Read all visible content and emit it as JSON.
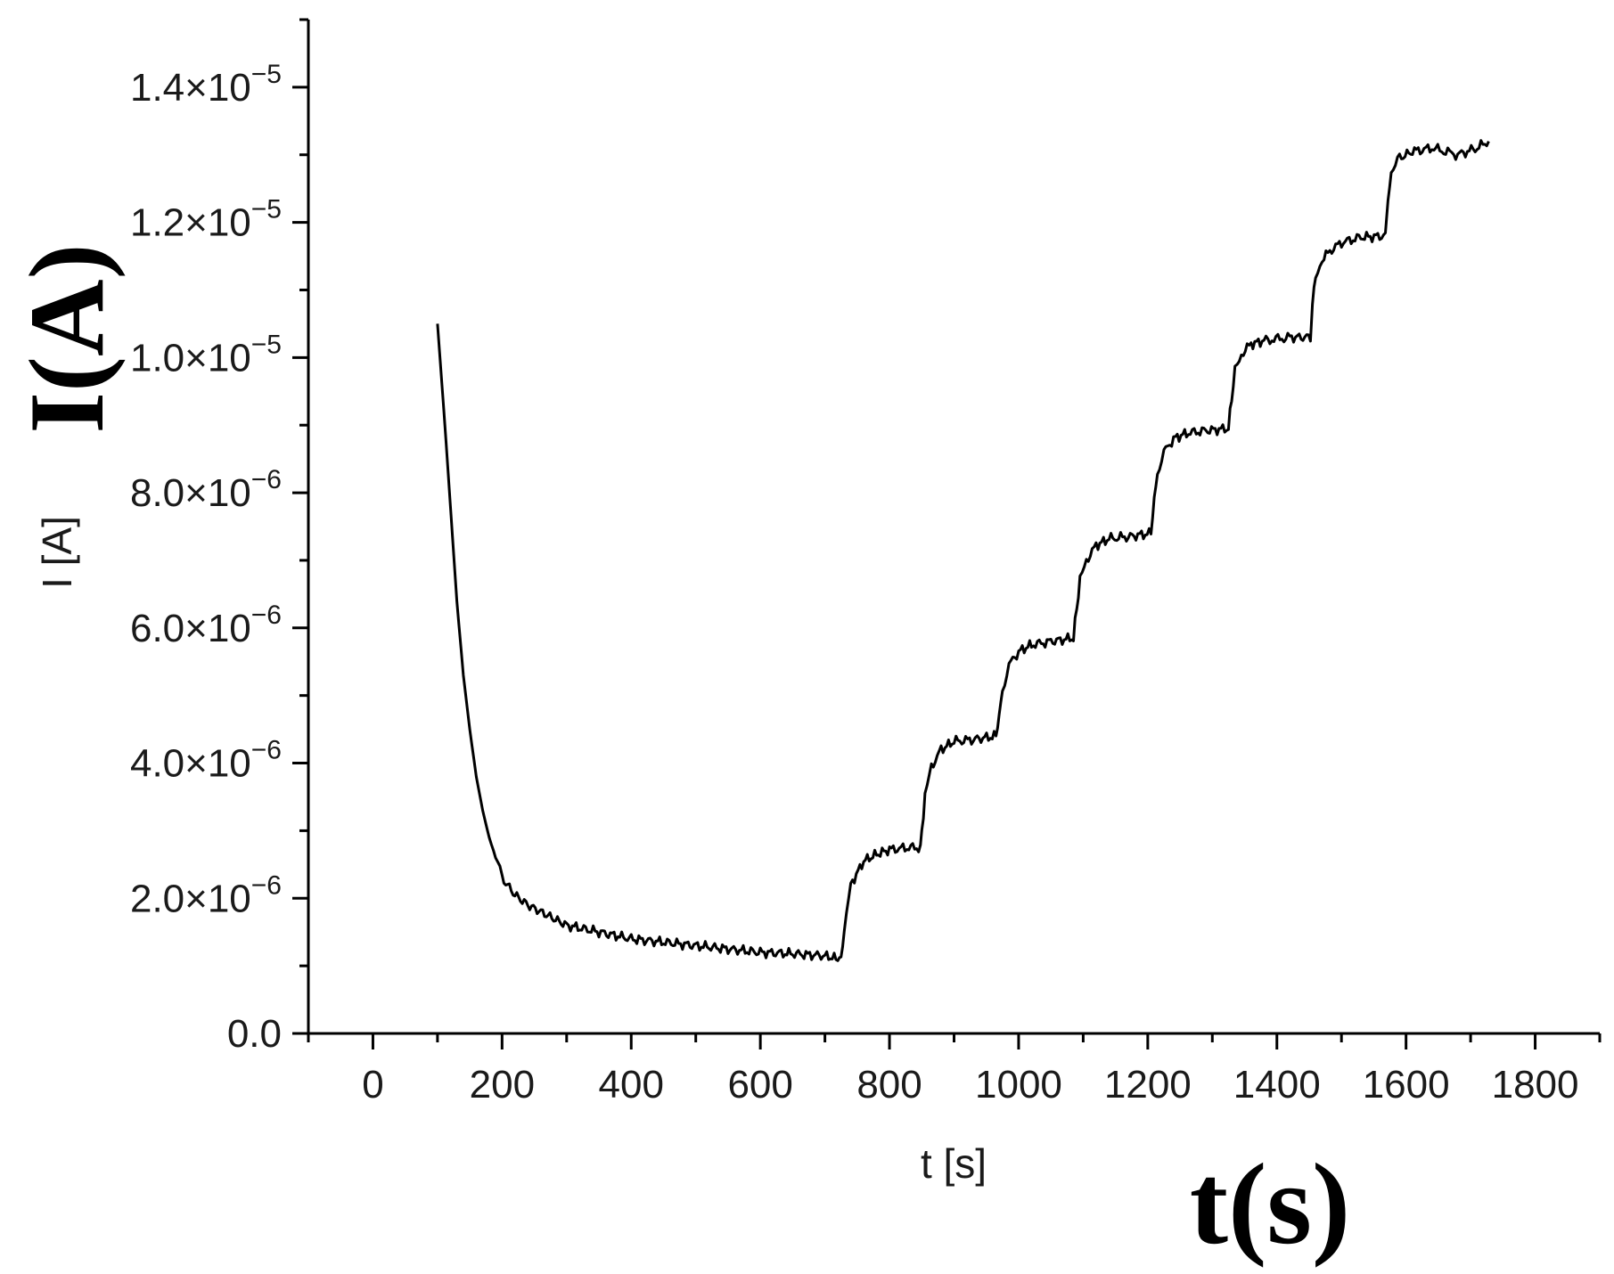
{
  "chart_data": {
    "type": "line",
    "xlabel": "t [s]",
    "ylabel": "I [A]",
    "overlay_xlabel": "t(s)",
    "overlay_ylabel": "I(A)",
    "xlim": [
      -100,
      1900
    ],
    "ylim": [
      0,
      1.5e-05
    ],
    "x_ticks": [
      {
        "value": 0,
        "label": "0"
      },
      {
        "value": 200,
        "label": "200"
      },
      {
        "value": 400,
        "label": "400"
      },
      {
        "value": 600,
        "label": "600"
      },
      {
        "value": 800,
        "label": "800"
      },
      {
        "value": 1000,
        "label": "1000"
      },
      {
        "value": 1200,
        "label": "1200"
      },
      {
        "value": 1400,
        "label": "1400"
      },
      {
        "value": 1600,
        "label": "1600"
      },
      {
        "value": 1800,
        "label": "1800"
      }
    ],
    "y_ticks": [
      {
        "value": 0,
        "base": "0.0",
        "exp": ""
      },
      {
        "value": 2e-06,
        "base": "2.0×10",
        "exp": "−6"
      },
      {
        "value": 4e-06,
        "base": "4.0×10",
        "exp": "−6"
      },
      {
        "value": 6e-06,
        "base": "6.0×10",
        "exp": "−6"
      },
      {
        "value": 8e-06,
        "base": "8.0×10",
        "exp": "−6"
      },
      {
        "value": 1e-05,
        "base": "1.0×10",
        "exp": "−5"
      },
      {
        "value": 1.2e-05,
        "base": "1.2×10",
        "exp": "−5"
      },
      {
        "value": 1.4e-05,
        "base": "1.4×10",
        "exp": "−5"
      }
    ],
    "grid": false,
    "line_color": "#000000",
    "series": [
      {
        "x": [
          100,
          110,
          120,
          130,
          140,
          150,
          160,
          170,
          180,
          190,
          200,
          220,
          240,
          260,
          280,
          300,
          350,
          400,
          450,
          500,
          550,
          600,
          650,
          700,
          720,
          725,
          730,
          740,
          760,
          780,
          800,
          830,
          848,
          850,
          855,
          865,
          880,
          900,
          930,
          965,
          970,
          975,
          985,
          1000,
          1020,
          1050,
          1085,
          1090,
          1095,
          1105,
          1120,
          1140,
          1170,
          1205,
          1210,
          1215,
          1225,
          1240,
          1260,
          1290,
          1325,
          1330,
          1335,
          1345,
          1360,
          1380,
          1420,
          1452,
          1455,
          1460,
          1470,
          1485,
          1500,
          1530,
          1568,
          1572,
          1577,
          1590,
          1610,
          1640,
          1680,
          1710,
          1728
        ],
        "y": [
          1.05e-05,
          9.2e-06,
          7.8e-06,
          6.4e-06,
          5.3e-06,
          4.5e-06,
          3.8e-06,
          3.3e-06,
          2.9e-06,
          2.6e-06,
          2.3e-06,
          2.05e-06,
          1.9e-06,
          1.8e-06,
          1.7e-06,
          1.6e-06,
          1.5e-06,
          1.4e-06,
          1.35e-06,
          1.3e-06,
          1.25e-06,
          1.2e-06,
          1.18e-06,
          1.15e-06,
          1.1e-06,
          1.12e-06,
          1.5e-06,
          2.2e-06,
          2.55e-06,
          2.65e-06,
          2.72e-06,
          2.75e-06,
          2.75e-06,
          3e-06,
          3.5e-06,
          3.95e-06,
          4.2e-06,
          4.32e-06,
          4.35e-06,
          4.4e-06,
          4.7e-06,
          5.1e-06,
          5.45e-06,
          5.65e-06,
          5.75e-06,
          5.8e-06,
          5.85e-06,
          6.3e-06,
          6.7e-06,
          7e-06,
          7.22e-06,
          7.32e-06,
          7.35e-06,
          7.4e-06,
          7.9e-06,
          8.3e-06,
          8.6e-06,
          8.8e-06,
          8.88e-06,
          8.92e-06,
          8.95e-06,
          9.4e-06,
          9.8e-06,
          1.005e-05,
          1.02e-05,
          1.025e-05,
          1.03e-05,
          1.03e-05,
          1.08e-05,
          1.12e-05,
          1.145e-05,
          1.16e-05,
          1.17e-05,
          1.178e-05,
          1.18e-05,
          1.23e-05,
          1.275e-05,
          1.295e-05,
          1.305e-05,
          1.31e-05,
          1.3e-05,
          1.31e-05,
          1.32e-05
        ]
      }
    ]
  }
}
